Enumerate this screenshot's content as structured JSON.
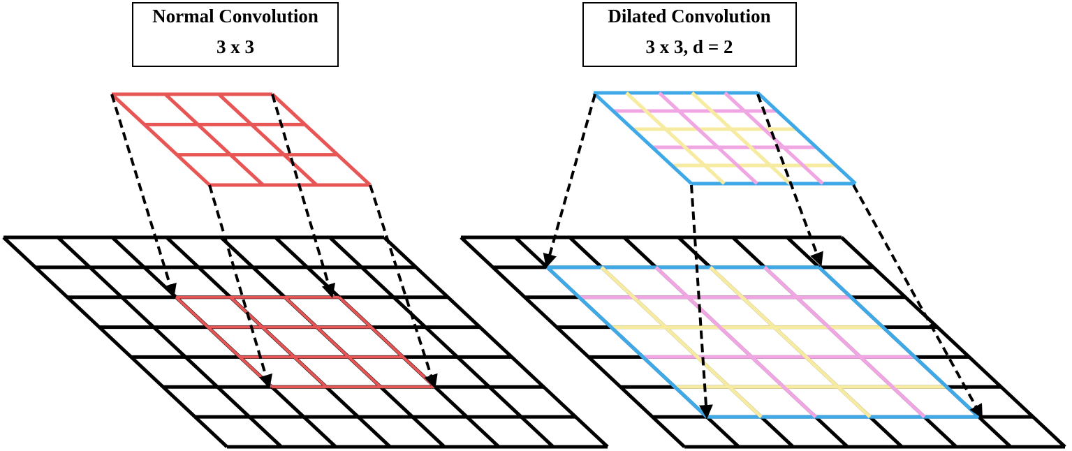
{
  "panels": [
    {
      "title": "Normal Convolution",
      "subtitle": "3 x 3"
    },
    {
      "title": "Dilated Convolution",
      "subtitle": "3 x 3, d = 2"
    }
  ]
}
